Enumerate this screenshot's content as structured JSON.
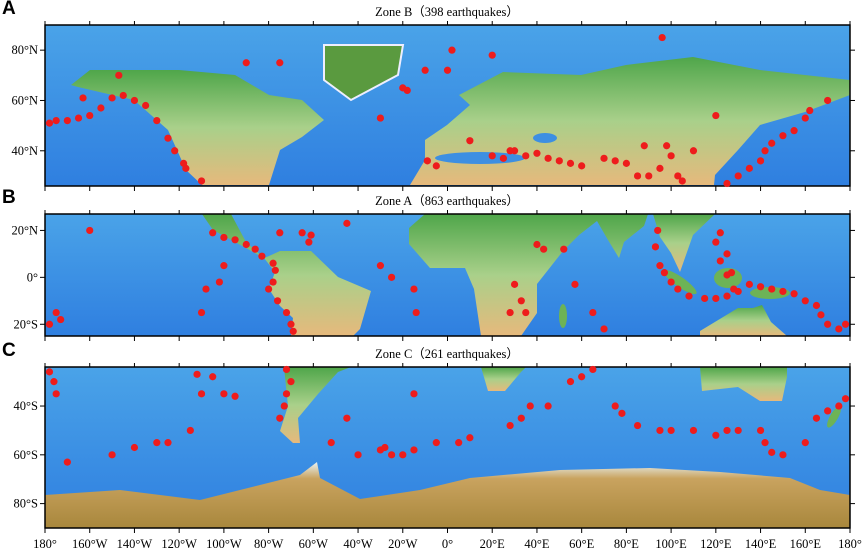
{
  "figure": {
    "xlim": [
      -180,
      180
    ],
    "xticks": [
      {
        "value": -180,
        "label": "180°"
      },
      {
        "value": -160,
        "label": "160°W"
      },
      {
        "value": -140,
        "label": "140°W"
      },
      {
        "value": -120,
        "label": "120°W"
      },
      {
        "value": -100,
        "label": "100°W"
      },
      {
        "value": -80,
        "label": "80°W"
      },
      {
        "value": -60,
        "label": "60°W"
      },
      {
        "value": -40,
        "label": "40°W"
      },
      {
        "value": -20,
        "label": "20°W"
      },
      {
        "value": 0,
        "label": "0°"
      },
      {
        "value": 20,
        "label": "20°E"
      },
      {
        "value": 40,
        "label": "40°E"
      },
      {
        "value": 60,
        "label": "60°E"
      },
      {
        "value": 80,
        "label": "80°E"
      },
      {
        "value": 100,
        "label": "100°E"
      },
      {
        "value": 120,
        "label": "120°E"
      },
      {
        "value": 140,
        "label": "140°E"
      },
      {
        "value": 160,
        "label": "160°E"
      },
      {
        "value": 180,
        "label": "180°"
      }
    ],
    "point_color": "#ee1c1c",
    "panels": [
      {
        "letter": "A",
        "title": "Zone B（398 earthquakes）",
        "ylim": [
          26,
          90
        ],
        "yticks": [
          {
            "value": 40,
            "label": "40°N"
          },
          {
            "value": 60,
            "label": "60°N"
          },
          {
            "value": 80,
            "label": "80°N"
          }
        ],
        "points": [
          [
            -178,
            51
          ],
          [
            -175,
            52
          ],
          [
            -170,
            52
          ],
          [
            -165,
            53
          ],
          [
            -160,
            54
          ],
          [
            -155,
            57
          ],
          [
            -150,
            61
          ],
          [
            -145,
            62
          ],
          [
            -140,
            60
          ],
          [
            -135,
            58
          ],
          [
            -130,
            52
          ],
          [
            -125,
            45
          ],
          [
            -122,
            40
          ],
          [
            -118,
            35
          ],
          [
            -117,
            33
          ],
          [
            -110,
            28
          ],
          [
            -163,
            61
          ],
          [
            -147,
            70
          ],
          [
            -30,
            53
          ],
          [
            -18,
            64
          ],
          [
            -20,
            65
          ],
          [
            -10,
            72
          ],
          [
            0,
            72
          ],
          [
            2,
            80
          ],
          [
            20,
            78
          ],
          [
            -75,
            75
          ],
          [
            -90,
            75
          ],
          [
            96,
            85
          ],
          [
            20,
            38
          ],
          [
            25,
            37
          ],
          [
            28,
            40
          ],
          [
            30,
            40
          ],
          [
            35,
            38
          ],
          [
            40,
            39
          ],
          [
            45,
            37
          ],
          [
            50,
            36
          ],
          [
            55,
            35
          ],
          [
            60,
            34
          ],
          [
            70,
            37
          ],
          [
            75,
            36
          ],
          [
            80,
            35
          ],
          [
            85,
            30
          ],
          [
            90,
            30
          ],
          [
            95,
            33
          ],
          [
            100,
            38
          ],
          [
            103,
            30
          ],
          [
            105,
            28
          ],
          [
            98,
            42
          ],
          [
            88,
            42
          ],
          [
            110,
            40
          ],
          [
            -9,
            36
          ],
          [
            -5,
            34
          ],
          [
            10,
            44
          ],
          [
            140,
            36
          ],
          [
            142,
            40
          ],
          [
            145,
            43
          ],
          [
            150,
            46
          ],
          [
            155,
            48
          ],
          [
            160,
            53
          ],
          [
            162,
            56
          ],
          [
            130,
            30
          ],
          [
            125,
            27
          ],
          [
            135,
            33
          ],
          [
            170,
            60
          ],
          [
            120,
            54
          ]
        ]
      },
      {
        "letter": "B",
        "title": "Zone A（863 earthquakes）",
        "ylim": [
          -25,
          27
        ],
        "yticks": [
          {
            "value": -20,
            "label": "20°S"
          },
          {
            "value": 0,
            "label": "0°"
          },
          {
            "value": 20,
            "label": "20°N"
          }
        ],
        "points": [
          [
            -105,
            19
          ],
          [
            -100,
            17
          ],
          [
            -95,
            16
          ],
          [
            -90,
            14
          ],
          [
            -86,
            12
          ],
          [
            -83,
            9
          ],
          [
            -78,
            6
          ],
          [
            -77,
            3
          ],
          [
            -78,
            -2
          ],
          [
            -80,
            -5
          ],
          [
            -76,
            -10
          ],
          [
            -72,
            -15
          ],
          [
            -70,
            -20
          ],
          [
            -69,
            -23
          ],
          [
            -62,
            15
          ],
          [
            -61,
            18
          ],
          [
            -65,
            19
          ],
          [
            -75,
            19
          ],
          [
            -45,
            23
          ],
          [
            -30,
            5
          ],
          [
            -25,
            0
          ],
          [
            -15,
            -5
          ],
          [
            -14,
            -15
          ],
          [
            -110,
            -15
          ],
          [
            -108,
            -5
          ],
          [
            -102,
            -2
          ],
          [
            -100,
            5
          ],
          [
            -160,
            20
          ],
          [
            -175,
            -15
          ],
          [
            -178,
            -20
          ],
          [
            -173,
            -18
          ],
          [
            30,
            -3
          ],
          [
            33,
            -10
          ],
          [
            35,
            -15
          ],
          [
            28,
            -15
          ],
          [
            40,
            14
          ],
          [
            43,
            12
          ],
          [
            52,
            12
          ],
          [
            57,
            -3
          ],
          [
            65,
            -15
          ],
          [
            70,
            -22
          ],
          [
            93,
            13
          ],
          [
            95,
            5
          ],
          [
            97,
            2
          ],
          [
            100,
            -2
          ],
          [
            103,
            -5
          ],
          [
            108,
            -8
          ],
          [
            115,
            -9
          ],
          [
            120,
            -9
          ],
          [
            125,
            -8
          ],
          [
            128,
            -5
          ],
          [
            125,
            1
          ],
          [
            122,
            7
          ],
          [
            125,
            10
          ],
          [
            120,
            15
          ],
          [
            122,
            19
          ],
          [
            127,
            2
          ],
          [
            140,
            -4
          ],
          [
            145,
            -5
          ],
          [
            150,
            -6
          ],
          [
            155,
            -7
          ],
          [
            160,
            -10
          ],
          [
            165,
            -12
          ],
          [
            167,
            -16
          ],
          [
            170,
            -20
          ],
          [
            178,
            -20
          ],
          [
            175,
            -22
          ],
          [
            130,
            -6
          ],
          [
            135,
            -3
          ],
          [
            94,
            20
          ]
        ]
      },
      {
        "letter": "C",
        "title": "Zone C（261 earthquakes）",
        "ylim": [
          -90,
          -24
        ],
        "yticks": [
          {
            "value": -80,
            "label": "80°S"
          },
          {
            "value": -60,
            "label": "60°S"
          },
          {
            "value": -40,
            "label": "40°S"
          }
        ],
        "points": [
          [
            -178,
            -26
          ],
          [
            -176,
            -30
          ],
          [
            -175,
            -35
          ],
          [
            -170,
            -63
          ],
          [
            -150,
            -60
          ],
          [
            -140,
            -57
          ],
          [
            -125,
            -55
          ],
          [
            -115,
            -50
          ],
          [
            -130,
            -55
          ],
          [
            -110,
            -35
          ],
          [
            -100,
            -35
          ],
          [
            -95,
            -36
          ],
          [
            -112,
            -27
          ],
          [
            -105,
            -28
          ],
          [
            -72,
            -35
          ],
          [
            -73,
            -40
          ],
          [
            -75,
            -45
          ],
          [
            -70,
            -30
          ],
          [
            -72,
            -25
          ],
          [
            -52,
            -55
          ],
          [
            -40,
            -60
          ],
          [
            -30,
            -58
          ],
          [
            -25,
            -60
          ],
          [
            -28,
            -57
          ],
          [
            -20,
            -60
          ],
          [
            -15,
            -58
          ],
          [
            -5,
            -55
          ],
          [
            5,
            -55
          ],
          [
            10,
            -53
          ],
          [
            -15,
            -35
          ],
          [
            -45,
            -45
          ],
          [
            28,
            -48
          ],
          [
            33,
            -45
          ],
          [
            37,
            -40
          ],
          [
            45,
            -40
          ],
          [
            55,
            -30
          ],
          [
            60,
            -28
          ],
          [
            65,
            -25
          ],
          [
            75,
            -40
          ],
          [
            78,
            -43
          ],
          [
            85,
            -48
          ],
          [
            95,
            -50
          ],
          [
            100,
            -50
          ],
          [
            110,
            -50
          ],
          [
            120,
            -52
          ],
          [
            125,
            -50
          ],
          [
            130,
            -50
          ],
          [
            140,
            -50
          ],
          [
            142,
            -55
          ],
          [
            145,
            -59
          ],
          [
            150,
            -60
          ],
          [
            160,
            -55
          ],
          [
            165,
            -45
          ],
          [
            170,
            -42
          ],
          [
            175,
            -40
          ],
          [
            178,
            -37
          ]
        ]
      }
    ]
  }
}
